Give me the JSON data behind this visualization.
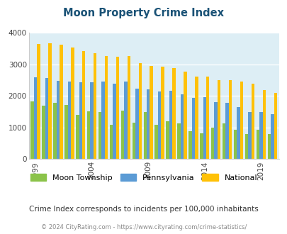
{
  "title": "Moon Property Crime Index",
  "title_color": "#1a5276",
  "subtitle": "Crime Index corresponds to incidents per 100,000 inhabitants",
  "footer": "© 2024 CityRating.com - https://www.cityrating.com/crime-statistics/",
  "years": [
    1999,
    2000,
    2001,
    2002,
    2003,
    2004,
    2005,
    2006,
    2007,
    2008,
    2009,
    2010,
    2011,
    2012,
    2013,
    2014,
    2015,
    2016,
    2017,
    2018,
    2019,
    2020
  ],
  "xtick_years": [
    1999,
    2004,
    2009,
    2014,
    2019
  ],
  "moon": [
    1820,
    1700,
    1780,
    1720,
    1400,
    1520,
    1480,
    1090,
    1540,
    1150,
    1500,
    1080,
    1200,
    1130,
    880,
    820,
    1000,
    1130,
    920,
    800,
    940,
    800
  ],
  "pennsylvania": [
    2600,
    2560,
    2470,
    2450,
    2440,
    2430,
    2460,
    2390,
    2450,
    2220,
    2200,
    2150,
    2170,
    2060,
    1950,
    1960,
    1810,
    1780,
    1650,
    1490,
    1500,
    1420
  ],
  "national": [
    3640,
    3660,
    3620,
    3540,
    3430,
    3350,
    3260,
    3250,
    3270,
    3050,
    2950,
    2930,
    2880,
    2760,
    2620,
    2610,
    2500,
    2500,
    2460,
    2390,
    2180,
    2100
  ],
  "moon_color": "#8bc34a",
  "penn_color": "#5b9bd5",
  "national_color": "#ffc107",
  "background_color": "#ddeef5",
  "ylim": [
    0,
    4000
  ],
  "yticks": [
    0,
    1000,
    2000,
    3000,
    4000
  ]
}
